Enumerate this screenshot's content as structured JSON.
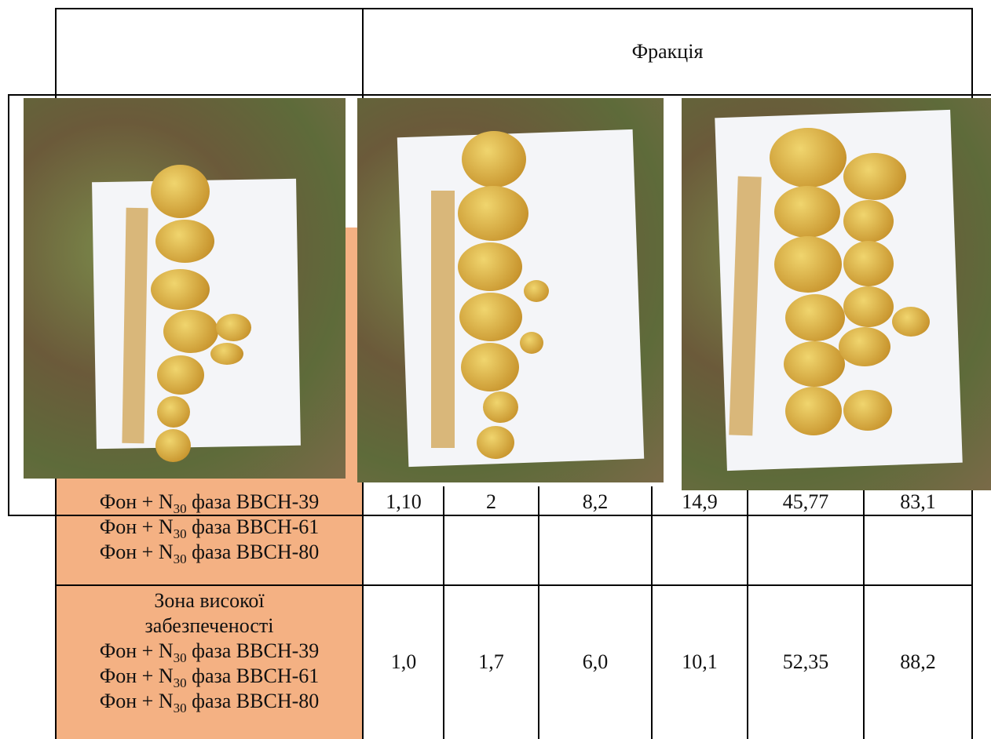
{
  "header": {
    "title": "Фракція"
  },
  "table": {
    "rows": [
      {
        "label": [
          {
            "text": "Фон + N",
            "sub": "30",
            "rest": " фаза  BBCH-39"
          },
          {
            "text": "Фон + N",
            "sub": "30",
            "rest": " фаза BBCH-61"
          },
          {
            "text": "Фон + N",
            "sub": "30",
            "rest": " фаза BBCH-80"
          }
        ],
        "cells": [
          "1,10",
          "2",
          "8,2",
          "14,9",
          "45,77",
          "83,1"
        ]
      },
      {
        "label_head": [
          "Зона високої",
          "забезпеченості"
        ],
        "label": [
          {
            "text": "Фон + N",
            "sub": "30",
            "rest": " фаза  BBCH-39"
          },
          {
            "text": "Фон + N",
            "sub": "30",
            "rest": " фаза BBCH-61"
          },
          {
            "text": "Фон + N",
            "sub": "30",
            "rest": " фаза BBCH-80"
          }
        ],
        "cells": [
          "1,0",
          "1,7",
          "6,0",
          "10,1",
          "52,35",
          "88,2"
        ]
      }
    ]
  }
}
